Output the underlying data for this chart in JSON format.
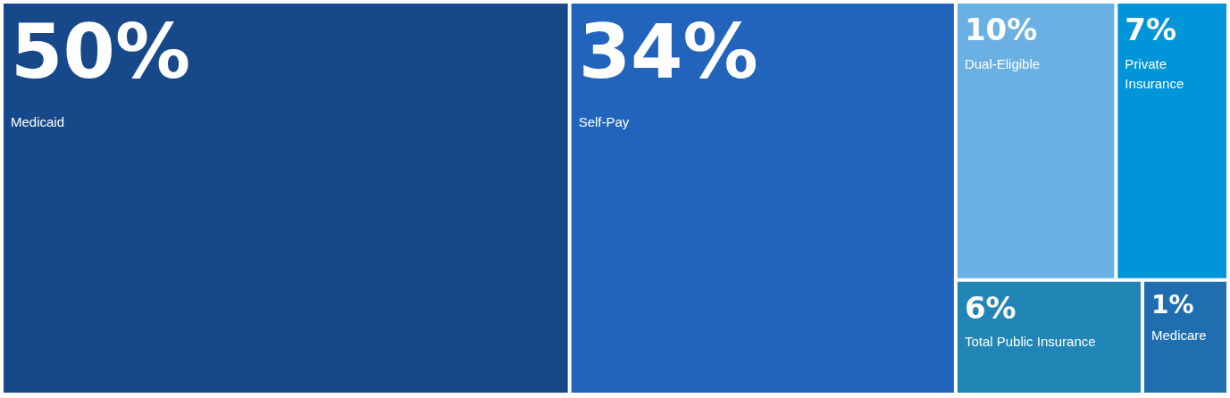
{
  "chart_data": {
    "type": "other",
    "categories": [
      "Medicaid",
      "Self-Pay",
      "Dual-Eligible",
      "Private Insurance",
      "Total Public Insurance",
      "Medicare"
    ],
    "values": [
      50,
      34,
      10,
      7,
      6,
      1
    ],
    "value_labels": [
      "50%",
      "34%",
      "10%",
      "7%",
      "6%",
      "1%"
    ],
    "colors": [
      "#17498a",
      "#2264bc",
      "#6ab0e2",
      "#0095d9",
      "#2186b6",
      "#1f6fb0"
    ]
  }
}
